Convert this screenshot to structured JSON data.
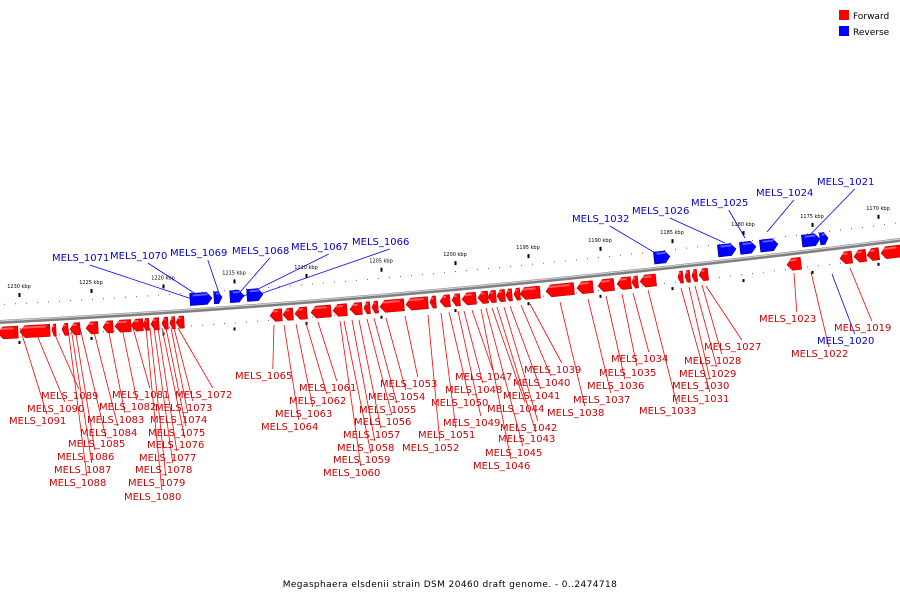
{
  "caption": "Megasphaera elsdenii strain DSM 20460 draft genome. - 0..2474718",
  "colors": {
    "forward": "#ff0000",
    "forward_dark": "#c00000",
    "forward_light": "#ff7070",
    "reverse": "#0000ff",
    "reverse_dark": "#0000b0",
    "reverse_light": "#7070ff",
    "backbone": "#808080",
    "backbone_light": "#d8d8d8",
    "label_forward": "#cc0000",
    "label_reverse": "#0000cc"
  },
  "legend": {
    "forward_label": "Forward",
    "reverse_label": "Reverse"
  },
  "ticks": [
    {
      "label": "1170 kbp"
    },
    {
      "label": "1175 kbp"
    },
    {
      "label": "1180 kbp"
    },
    {
      "label": "1185 kbp"
    },
    {
      "label": "1190 kbp"
    },
    {
      "label": "1195 kbp"
    },
    {
      "label": "1200 kbp"
    },
    {
      "label": "1205 kbp"
    },
    {
      "label": "1210 kbp"
    },
    {
      "label": "1215 kbp"
    },
    {
      "label": "1220 kbp"
    },
    {
      "label": "1225 kbp"
    },
    {
      "label": "1230 kbp"
    }
  ],
  "reverse_genes": [
    {
      "label": "MELS_1021"
    },
    {
      "label": "MELS_1024"
    },
    {
      "label": "MELS_1025"
    },
    {
      "label": "MELS_1026"
    },
    {
      "label": "MELS_1032"
    },
    {
      "label": "MELS_1066"
    },
    {
      "label": "MELS_1067"
    },
    {
      "label": "MELS_1068"
    },
    {
      "label": "MELS_1069"
    },
    {
      "label": "MELS_1070"
    },
    {
      "label": "MELS_1071"
    },
    {
      "label": "MELS_1020"
    }
  ],
  "forward_genes": [
    {
      "label": "MELS_1019"
    },
    {
      "label": "MELS_1022"
    },
    {
      "label": "MELS_1023"
    },
    {
      "label": "MELS_1027"
    },
    {
      "label": "MELS_1028"
    },
    {
      "label": "MELS_1029"
    },
    {
      "label": "MELS_1030"
    },
    {
      "label": "MELS_1031"
    },
    {
      "label": "MELS_1033"
    },
    {
      "label": "MELS_1034"
    },
    {
      "label": "MELS_1035"
    },
    {
      "label": "MELS_1036"
    },
    {
      "label": "MELS_1037"
    },
    {
      "label": "MELS_1038"
    },
    {
      "label": "MELS_1039"
    },
    {
      "label": "MELS_1040"
    },
    {
      "label": "MELS_1041"
    },
    {
      "label": "MELS_1042"
    },
    {
      "label": "MELS_1043"
    },
    {
      "label": "MELS_1044"
    },
    {
      "label": "MELS_1045"
    },
    {
      "label": "MELS_1046"
    },
    {
      "label": "MELS_1047"
    },
    {
      "label": "MELS_1048"
    },
    {
      "label": "MELS_1049"
    },
    {
      "label": "MELS_1050"
    },
    {
      "label": "MELS_1051"
    },
    {
      "label": "MELS_1052"
    },
    {
      "label": "MELS_1053"
    },
    {
      "label": "MELS_1054"
    },
    {
      "label": "MELS_1055"
    },
    {
      "label": "MELS_1056"
    },
    {
      "label": "MELS_1057"
    },
    {
      "label": "MELS_1058"
    },
    {
      "label": "MELS_1059"
    },
    {
      "label": "MELS_1060"
    },
    {
      "label": "MELS_1061"
    },
    {
      "label": "MELS_1062"
    },
    {
      "label": "MELS_1063"
    },
    {
      "label": "MELS_1064"
    },
    {
      "label": "MELS_1065"
    },
    {
      "label": "MELS_1072"
    },
    {
      "label": "MELS_1073"
    },
    {
      "label": "MELS_1074"
    },
    {
      "label": "MELS_1075"
    },
    {
      "label": "MELS_1076"
    },
    {
      "label": "MELS_1077"
    },
    {
      "label": "MELS_1078"
    },
    {
      "label": "MELS_1079"
    },
    {
      "label": "MELS_1080"
    },
    {
      "label": "MELS_1081"
    },
    {
      "label": "MELS_1082"
    },
    {
      "label": "MELS_1083"
    },
    {
      "label": "MELS_1084"
    },
    {
      "label": "MELS_1085"
    },
    {
      "label": "MELS_1086"
    },
    {
      "label": "MELS_1087"
    },
    {
      "label": "MELS_1088"
    },
    {
      "label": "MELS_1089"
    },
    {
      "label": "MELS_1090"
    },
    {
      "label": "MELS_1091"
    }
  ]
}
